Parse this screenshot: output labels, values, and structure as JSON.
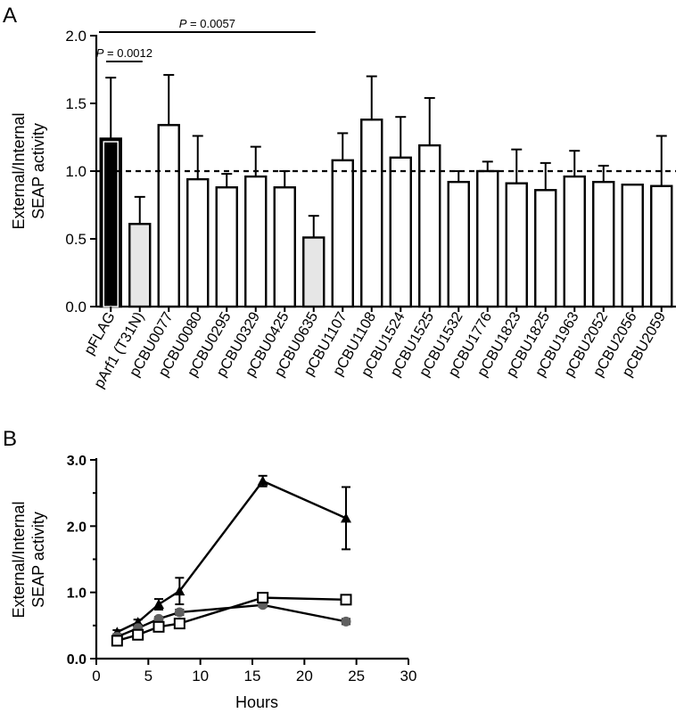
{
  "panels": [
    {
      "label": "A"
    },
    {
      "label": "B"
    }
  ],
  "chart_data": [
    {
      "type": "bar",
      "panel": "A",
      "ylabel_lines": [
        "External/Internal",
        "SEAP activity"
      ],
      "ylim": [
        0,
        2.0
      ],
      "yticks": [
        "0.0",
        "0.5",
        "1.0",
        "1.5",
        "2.0"
      ],
      "reference_line": 1.0,
      "categories": [
        "pFLAG",
        "pArf1 (T31N)",
        "pCBU0077",
        "pCBU0080",
        "pCBU0295",
        "pCBU0329",
        "pCBU0425",
        "pCBU0635",
        "pCBU1107",
        "pCBU1108",
        "pCBU1524",
        "pCBU1525",
        "pCBU1532",
        "pCBU1776",
        "pCBU1823",
        "pCBU1825",
        "pCBU1963",
        "pCBU2052",
        "pCBU2056",
        "pCBU2059"
      ],
      "values": [
        1.24,
        0.61,
        1.34,
        0.94,
        0.88,
        0.96,
        0.88,
        0.51,
        1.08,
        1.38,
        1.1,
        1.19,
        0.92,
        1.0,
        0.91,
        0.86,
        0.96,
        0.92,
        0.9,
        0.89
      ],
      "errors": [
        0.45,
        0.2,
        0.37,
        0.32,
        0.1,
        0.22,
        0.12,
        0.16,
        0.2,
        0.32,
        0.3,
        0.35,
        0.08,
        0.07,
        0.25,
        0.2,
        0.19,
        0.12,
        0.0,
        0.37
      ],
      "fills": [
        "#000000",
        "#e6e6e6",
        "#ffffff",
        "#ffffff",
        "#ffffff",
        "#ffffff",
        "#ffffff",
        "#e6e6e6",
        "#ffffff",
        "#ffffff",
        "#ffffff",
        "#ffffff",
        "#ffffff",
        "#ffffff",
        "#ffffff",
        "#ffffff",
        "#ffffff",
        "#ffffff",
        "#ffffff",
        "#ffffff"
      ],
      "annotations": [
        {
          "p_label": "P",
          "text": " = 0.0057",
          "from": 0,
          "to": 7
        },
        {
          "p_label": "P",
          "text": " = 0.0012",
          "from": 0,
          "to": 1
        }
      ]
    },
    {
      "type": "line",
      "panel": "B",
      "xlabel": "Hours",
      "ylabel_lines": [
        "External/Internal",
        "SEAP activity"
      ],
      "xlim": [
        0,
        30
      ],
      "ylim": [
        0,
        3.0
      ],
      "xticks": [
        "0",
        "5",
        "10",
        "15",
        "20",
        "25",
        "30"
      ],
      "yticks": [
        "0.0",
        "1.0",
        "2.0",
        "3.0"
      ],
      "series": [
        {
          "marker": "triangle",
          "color": "#000000",
          "x": [
            2,
            4,
            6,
            8,
            16,
            24
          ],
          "y": [
            0.4,
            0.55,
            0.82,
            1.02,
            2.68,
            2.12
          ],
          "err": [
            0.03,
            0.04,
            0.08,
            0.2,
            0.08,
            0.47
          ]
        },
        {
          "marker": "circle",
          "color": "#606060",
          "x": [
            2,
            4,
            6,
            8,
            16,
            24
          ],
          "y": [
            0.33,
            0.46,
            0.6,
            0.7,
            0.81,
            0.56
          ],
          "err": [
            0.02,
            0.03,
            0.03,
            0.04,
            0.03,
            0.04
          ]
        },
        {
          "marker": "square",
          "color": "#000000",
          "x": [
            2,
            4,
            6,
            8,
            16,
            24
          ],
          "y": [
            0.27,
            0.36,
            0.48,
            0.53,
            0.92,
            0.89
          ],
          "err": [
            0.02,
            0.03,
            0.03,
            0.04,
            0.06,
            0.03
          ]
        }
      ]
    }
  ]
}
